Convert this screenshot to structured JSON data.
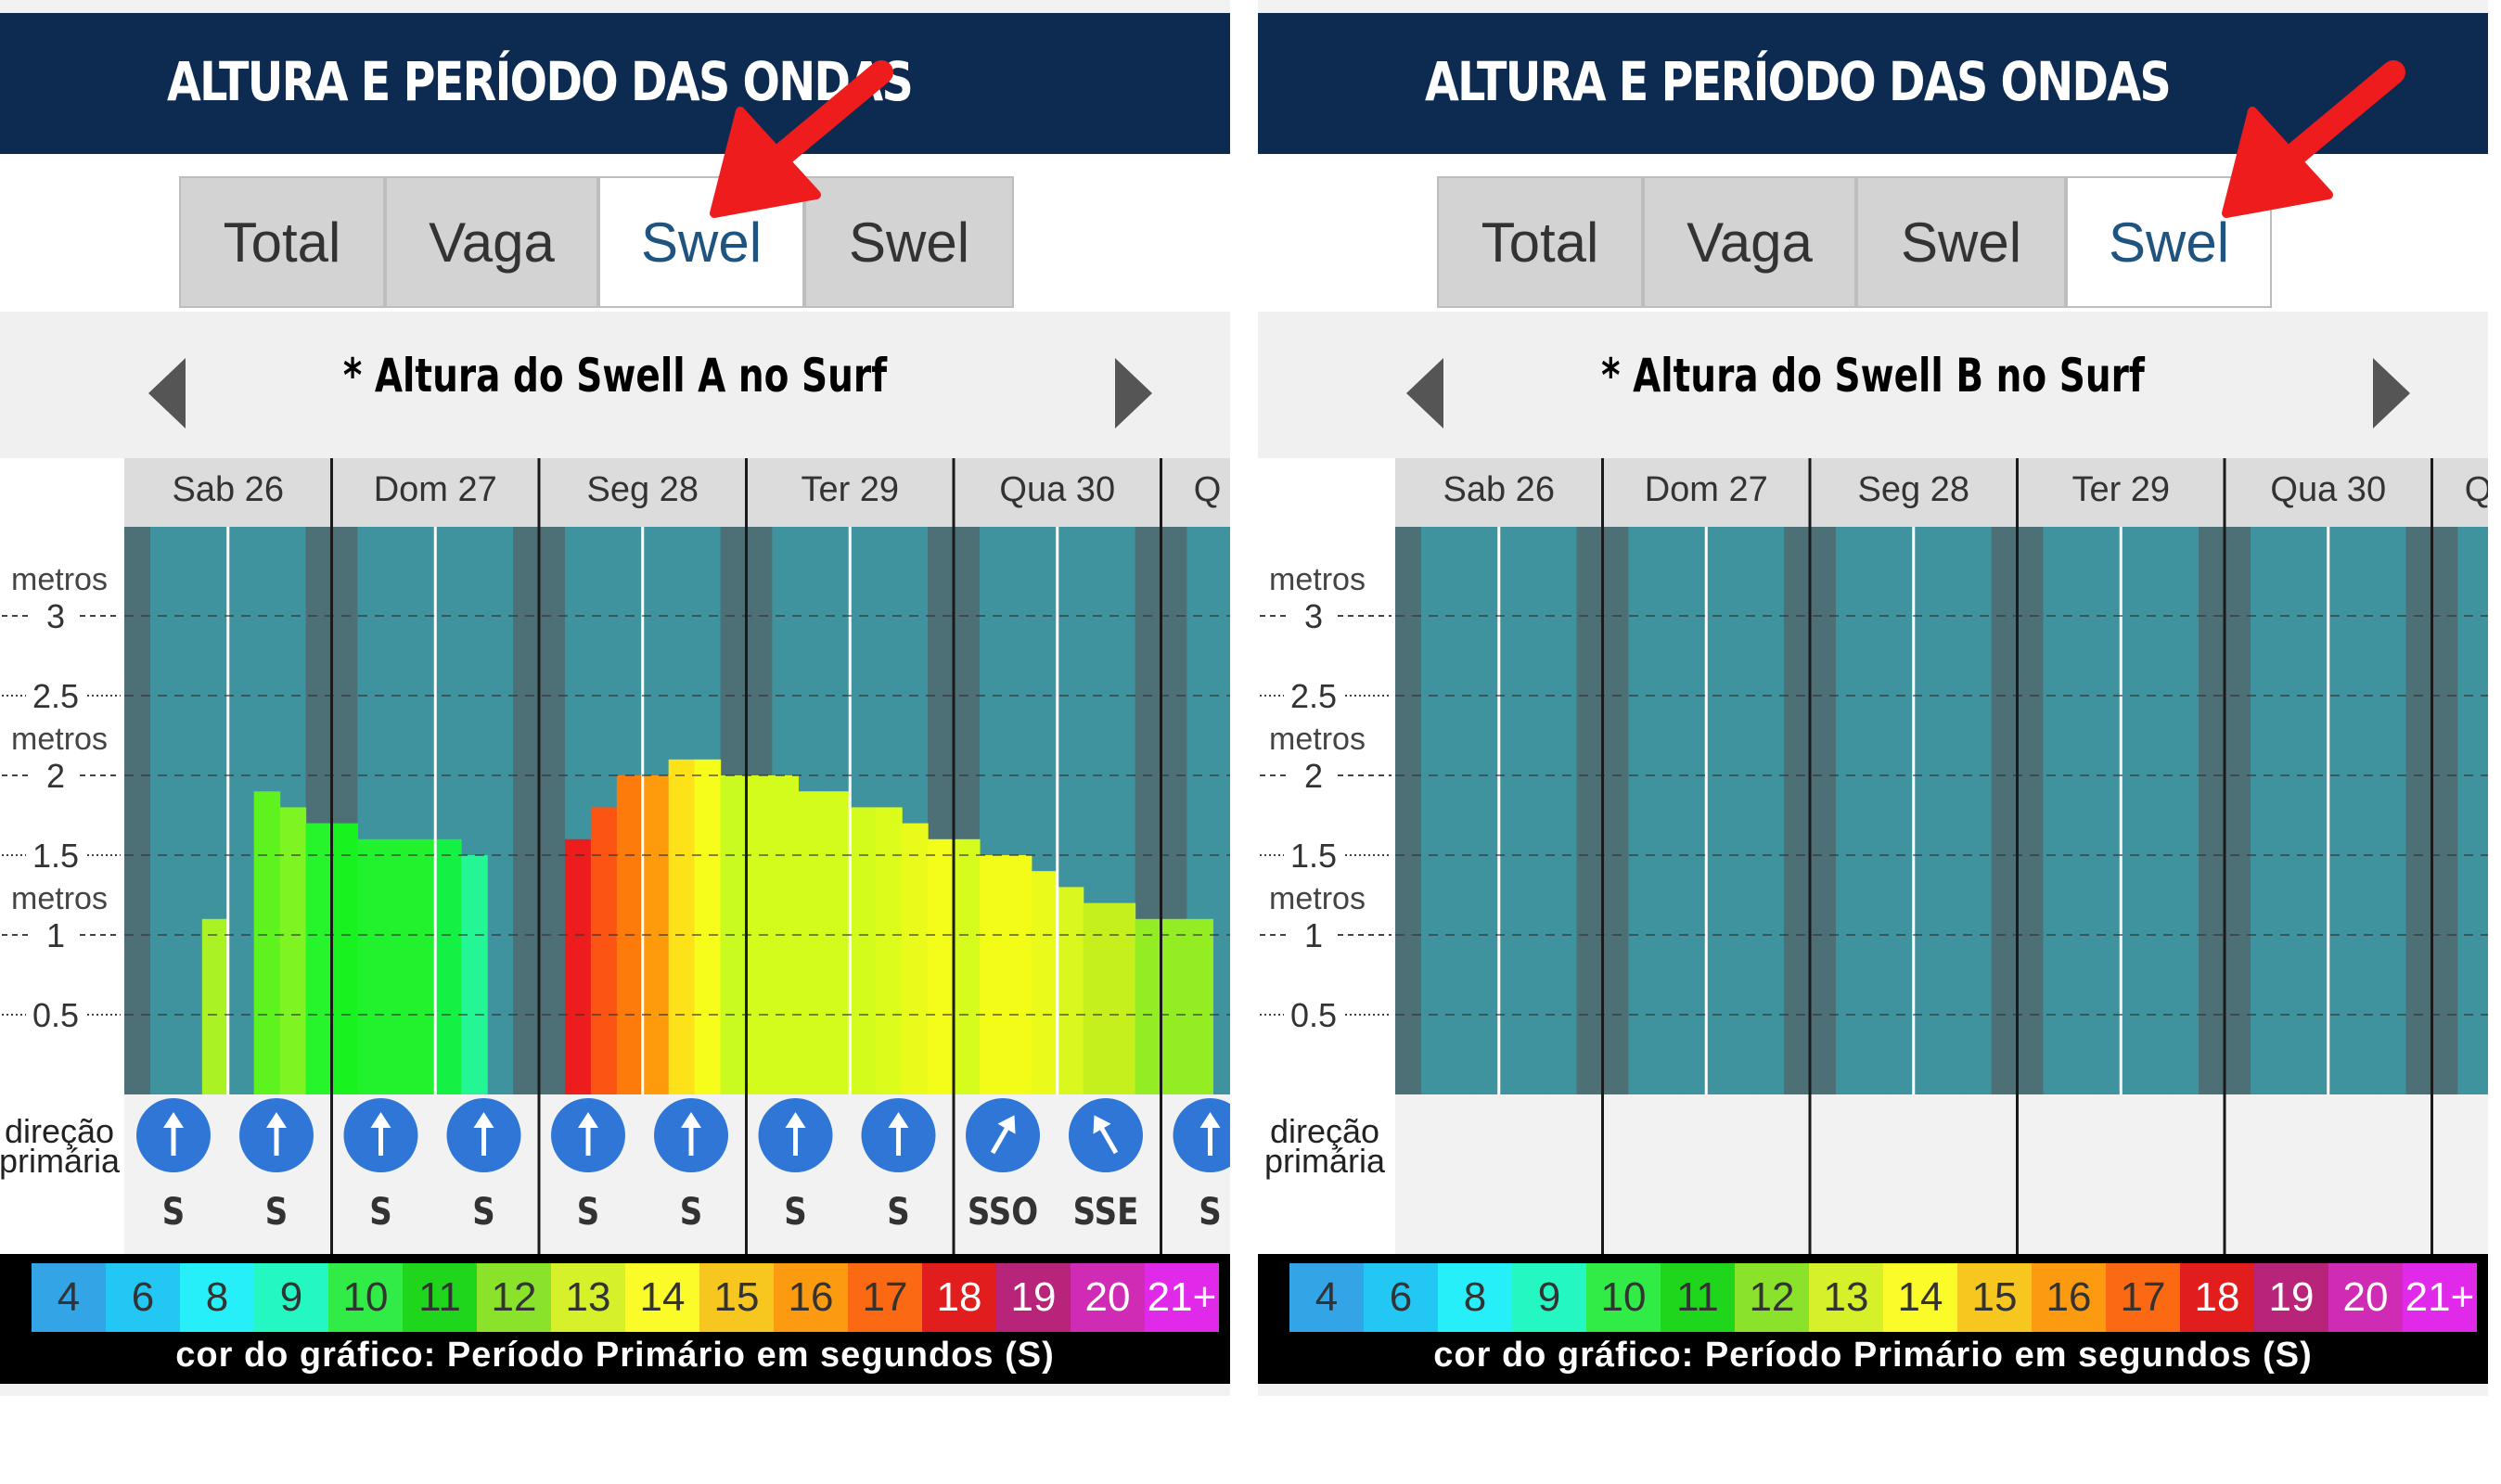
{
  "panels": [
    {
      "header_title": "ALTURA E PERÍODO DAS ONDAS",
      "tabs": [
        {
          "label": "Total",
          "active": false
        },
        {
          "label": "Vaga",
          "active": false
        },
        {
          "label": "Swel",
          "active": true
        },
        {
          "label": "Swel",
          "active": false
        }
      ],
      "subtitle": "* Altura do Swell A no Surf",
      "days": [
        "Sab 26",
        "Dom 27",
        "Seg 28",
        "Ter 29",
        "Qua 30",
        "Q"
      ],
      "y_axis": {
        "unit_label": "metros",
        "ticks": [
          "3",
          "2.5",
          "2",
          "1.5",
          "1",
          "0.5"
        ],
        "unit_rows": [
          "metros",
          "metros",
          "metros"
        ]
      },
      "direction_label": [
        "direção",
        "primária"
      ],
      "directions": [
        "S",
        "S",
        "S",
        "S",
        "S",
        "S",
        "S",
        "S",
        "SSO",
        "SSE",
        "S"
      ],
      "has_data": true
    },
    {
      "header_title": "ALTURA E PERÍODO DAS ONDAS",
      "tabs": [
        {
          "label": "Total",
          "active": false
        },
        {
          "label": "Vaga",
          "active": false
        },
        {
          "label": "Swel",
          "active": false
        },
        {
          "label": "Swel",
          "active": true
        }
      ],
      "subtitle": "* Altura do Swell B no Surf",
      "days": [
        "Sab 26",
        "Dom 27",
        "Seg 28",
        "Ter 29",
        "Qua 30",
        "Q"
      ],
      "y_axis": {
        "unit_label": "metros",
        "ticks": [
          "3",
          "2.5",
          "2",
          "1.5",
          "1",
          "0.5"
        ],
        "unit_rows": [
          "metros",
          "metros",
          "metros"
        ]
      },
      "direction_label": [
        "direção",
        "primária"
      ],
      "directions": [],
      "has_data": false
    }
  ],
  "legend": {
    "periods": [
      "4",
      "6",
      "8",
      "9",
      "10",
      "11",
      "12",
      "13",
      "14",
      "15",
      "16",
      "17",
      "18",
      "19",
      "20",
      "21+"
    ],
    "caption": "cor do gráfico: Período Primário em segundos (S)"
  },
  "chart_data": [
    {
      "type": "bar",
      "title": "* Altura do Swell A no Surf",
      "ylabel": "metros",
      "ylim": [
        0,
        3.5
      ],
      "categories": [
        "Sab 26",
        "Sab 26",
        "Sab 26",
        "Sab 26",
        "Sab 26",
        "Sab 26",
        "Sab 26",
        "Sab 26",
        "Dom 27",
        "Dom 27",
        "Dom 27",
        "Dom 27",
        "Dom 27",
        "Dom 27",
        "Dom 27",
        "Dom 27",
        "Seg 28",
        "Seg 28",
        "Seg 28",
        "Seg 28",
        "Seg 28",
        "Seg 28",
        "Seg 28",
        "Seg 28",
        "Ter 29",
        "Ter 29",
        "Ter 29",
        "Ter 29",
        "Ter 29",
        "Ter 29",
        "Ter 29",
        "Ter 29",
        "Qua 30",
        "Qua 30",
        "Qua 30",
        "Qua 30",
        "Qua 30",
        "Qua 30",
        "Qua 30",
        "Qua 30",
        "Q",
        "Q"
      ],
      "series": [
        {
          "values": [
            0,
            0,
            0,
            1.1,
            0,
            1.9,
            1.8,
            1.7,
            1.7,
            1.6,
            1.6,
            1.6,
            1.6,
            1.5,
            0,
            0,
            0,
            1.6,
            1.8,
            2.0,
            2.0,
            2.1,
            2.1,
            2.0,
            2.0,
            2.0,
            1.9,
            1.9,
            1.8,
            1.8,
            1.7,
            1.6,
            1.6,
            1.5,
            1.5,
            1.4,
            1.3,
            1.2,
            1.2,
            1.1,
            1.1,
            1.1
          ]
        }
      ],
      "period_colors": [
        "",
        "",
        "",
        "#aaf224",
        "",
        "#5ef21f",
        "#7ef522",
        "#27f52c",
        "#18f21e",
        "#22f22e",
        "#22f22e",
        "#22f22e",
        "#14f044",
        "#24f595",
        "",
        "",
        "",
        "#ee1d1d",
        "#fc5412",
        "#fc7b0b",
        "#fd9b0d",
        "#fde119",
        "#f6fd1b",
        "#c9fb20",
        "#d3fc1c",
        "#d3fc1c",
        "#d3fc1c",
        "#d3fc1c",
        "#d3fc1c",
        "#dcfc1c",
        "#eafb1c",
        "#f4fc1a",
        "#d5fc1c",
        "#f2fc17",
        "#f2fc17",
        "#eafb1c",
        "#daf71e",
        "#c5f01e",
        "#c5f01e",
        "#94ed23",
        "#94ed23",
        "#94ed23"
      ]
    },
    {
      "type": "bar",
      "title": "* Altura do Swell B no Surf",
      "ylabel": "metros",
      "ylim": [
        0,
        3.5
      ],
      "series": [
        {
          "values": []
        }
      ]
    }
  ],
  "colors": {
    "header_bg": "#0d2a51",
    "chart_bg_light": "#3e939f",
    "chart_bg_dark": "#4c7076",
    "active_tab_text": "#1f5380",
    "direction_icon": "#2f76d6",
    "arrow_red": "#ee1c1c",
    "legend_bg": [
      "#33a4e6",
      "#23c7f4",
      "#26effa",
      "#24f7c2",
      "#31ec46",
      "#20d61c",
      "#8ae32a",
      "#d6f02a",
      "#fbfb2a",
      "#f7c720",
      "#fc9b0f",
      "#fb6a12",
      "#e21d1d",
      "#b7247a",
      "#d02bb4",
      "#e129ea"
    ]
  }
}
